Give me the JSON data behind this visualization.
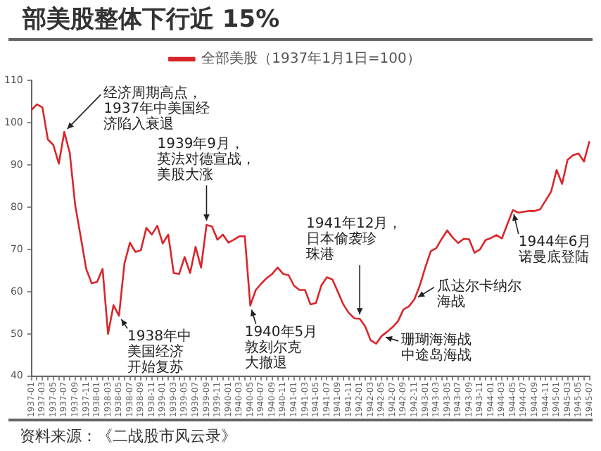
{
  "chart_data": {
    "type": "line",
    "title": "部美股整体下行近 15%",
    "categories": [
      "1937-01",
      null,
      "1937-03",
      null,
      "1937-05",
      null,
      "1937-07",
      null,
      "1937-09",
      null,
      "1937-11",
      null,
      "1938-01",
      null,
      "1938-03",
      null,
      "1938-05",
      null,
      "1938-07",
      null,
      "1938-09",
      null,
      "1938-11",
      null,
      "1939-01",
      null,
      "1939-03",
      null,
      "1939-05",
      null,
      "1939-07",
      null,
      "1939-09",
      null,
      "1939-11",
      null,
      "1940-01",
      null,
      "1940-03",
      null,
      "1940-05",
      null,
      "1940-07",
      null,
      "1940-09",
      null,
      "1940-11",
      null,
      "1941-01",
      null,
      "1941-03",
      null,
      "1941-05",
      null,
      "1941-07",
      null,
      "1941-09",
      null,
      "1941-11",
      null,
      "1942-01",
      null,
      "1942-03",
      null,
      "1942-05",
      null,
      "1942-07",
      null,
      "1942-09",
      null,
      "1942-11",
      null,
      "1943-01",
      null,
      "1943-03",
      null,
      "1943-05",
      null,
      "1943-07",
      null,
      "1943-09",
      null,
      "1943-11",
      null,
      "1944-01",
      null,
      "1944-03",
      null,
      "1944-05",
      null,
      "1944-07",
      null,
      "1944-09",
      null,
      "1944-11",
      null,
      "1945-01",
      null,
      "1945-03",
      null,
      "1945-05",
      null,
      "1945-07"
    ],
    "series": [
      {
        "name": "全部美股（1937年1月1日=100）",
        "color": "#d9262b",
        "values": [
          103,
          104.3,
          103.6,
          96,
          94.7,
          90.3,
          97.8,
          92.8,
          80.4,
          73,
          65.4,
          62,
          62.3,
          65.4,
          50,
          56.8,
          54.3,
          66.7,
          71.6,
          69.4,
          69.8,
          75.1,
          73.5,
          75.6,
          71.4,
          73.5,
          64.4,
          64.2,
          68.2,
          64.4,
          70.6,
          65.7,
          75.8,
          75.4,
          72.3,
          73.5,
          71.6,
          72.3,
          73.1,
          73.1,
          56.7,
          60.4,
          61.9,
          63.2,
          64.2,
          65.7,
          64.2,
          63.9,
          61.4,
          60.4,
          60.4,
          57,
          57.3,
          61.5,
          63.4,
          62.9,
          60,
          57,
          55,
          53.7,
          53.6,
          51.8,
          48.5,
          47.7,
          49.5,
          50.5,
          51.6,
          53,
          55.8,
          56.5,
          58.2,
          61.5,
          65.8,
          69.6,
          70.3,
          72.5,
          74.5,
          72.8,
          71.5,
          72.5,
          72.4,
          69.2,
          70,
          72.2,
          72.7,
          73.4,
          72.6,
          76,
          79.3,
          78.7,
          78.9,
          79.1,
          79.1,
          79.5,
          81.6,
          83.7,
          88.8,
          85.5,
          91.2,
          92.3,
          92.7,
          90.8,
          95.6
        ]
      }
    ],
    "ylim": [
      40,
      110
    ],
    "yticks": [
      40,
      50,
      60,
      70,
      80,
      90,
      100,
      110
    ],
    "legend": "top",
    "marker": "none",
    "line_style": "solid",
    "annotations": [
      {
        "text": "经济周期高点，1937年中美国经济陷入衰退",
        "x": "1937-07",
        "y": 97.8
      },
      {
        "text": "1938年中美国经济开始复苏",
        "x": "1938-05",
        "y": 54.3
      },
      {
        "text": "1939年9月，英法对德宣战，美股大涨",
        "x": "1939-09",
        "y": 75.8
      },
      {
        "text": "1940年5月敦刻尔克大撤退",
        "x": "1940-05",
        "y": 56.7
      },
      {
        "text": "1941年12月，日本偷袭珍珠港",
        "x": "1942-01",
        "y": 53.6
      },
      {
        "text": "珊瑚海海战中途岛海战",
        "x": "1942-05",
        "y": 49.5
      },
      {
        "text": "瓜达尔卡纳尔海战",
        "x": "1942-11",
        "y": 58.2
      },
      {
        "text": "1944年6月诺曼底登陆",
        "x": "1944-05",
        "y": 79.3
      },
      "资料来源：《二战股市风云录》"
    ]
  }
}
